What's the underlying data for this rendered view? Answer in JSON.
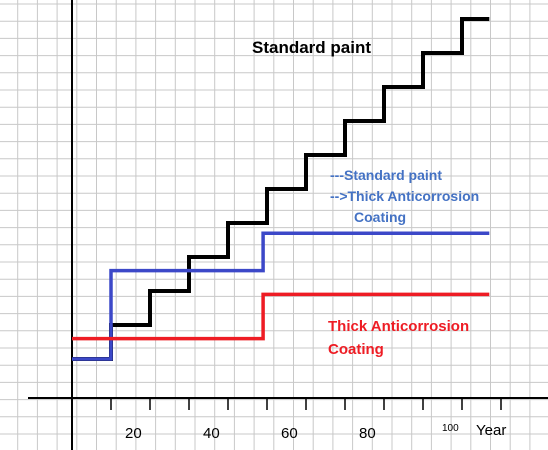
{
  "chart_data": {
    "type": "line",
    "title": "",
    "xlabel": "Year",
    "ylabel": "",
    "xlim": [
      0,
      107
    ],
    "ylim": [
      0,
      10
    ],
    "grid": true,
    "step": true,
    "x_ticks": [
      "20",
      "40",
      "60",
      "80",
      "100"
    ],
    "series": [
      {
        "name": "Standard paint",
        "color": "#000000",
        "x": [
          0,
          10,
          10,
          20,
          20,
          30,
          30,
          40,
          40,
          50,
          50,
          60,
          60,
          70,
          70,
          80,
          80,
          90,
          90,
          100,
          100,
          107
        ],
        "y": [
          0,
          0,
          1,
          1,
          2,
          2,
          3,
          3,
          4,
          4,
          5,
          5,
          6,
          6,
          7,
          7,
          8,
          8,
          9,
          9,
          10,
          10
        ]
      },
      {
        "name": "---Standard paint -->Thick Anticorrosion Coating",
        "color": "#3c48c8",
        "x": [
          0,
          10,
          10,
          49,
          49,
          107
        ],
        "y": [
          0,
          0,
          2.6,
          2.6,
          3.7,
          3.7
        ]
      },
      {
        "name": "Thick Anticorrosion Coating",
        "color": "#ee1c24",
        "x": [
          0,
          49,
          49,
          107
        ],
        "y": [
          0.6,
          0.6,
          1.9,
          1.9
        ]
      }
    ],
    "annotations": {
      "black": "Standard paint",
      "blue_line1": "---Standard paint",
      "blue_line2": "-->Thick Anticorrosion",
      "blue_line3": "Coating",
      "red_line1": "Thick Anticorrosion",
      "red_line2": "Coating"
    }
  }
}
